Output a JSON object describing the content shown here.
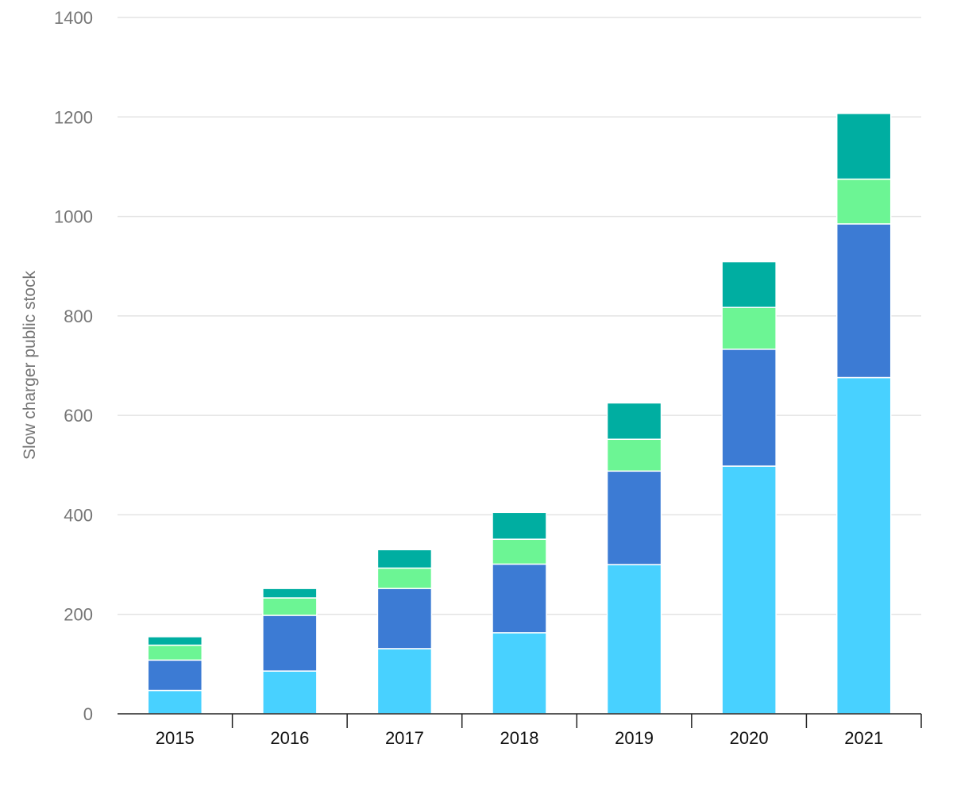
{
  "chart_data": {
    "type": "bar",
    "stacked": true,
    "title": "",
    "xlabel": "",
    "ylabel": "Slow charger public stock",
    "ylim": [
      0,
      1400
    ],
    "yticks": [
      0,
      200,
      400,
      600,
      800,
      1000,
      1200,
      1400
    ],
    "grid": true,
    "legend": "none",
    "categories": [
      "2015",
      "2016",
      "2017",
      "2018",
      "2019",
      "2020",
      "2021"
    ],
    "series": [
      {
        "color": "#48D1FF",
        "values": [
          47,
          86,
          131,
          163,
          300,
          498,
          676
        ]
      },
      {
        "color": "#3C7BD4",
        "values": [
          61,
          112,
          121,
          138,
          188,
          235,
          309
        ]
      },
      {
        "color": "#6CF594",
        "values": [
          30,
          35,
          41,
          50,
          64,
          84,
          90
        ]
      },
      {
        "color": "#00AEA1",
        "values": [
          17,
          19,
          37,
          54,
          73,
          92,
          132
        ]
      }
    ]
  }
}
